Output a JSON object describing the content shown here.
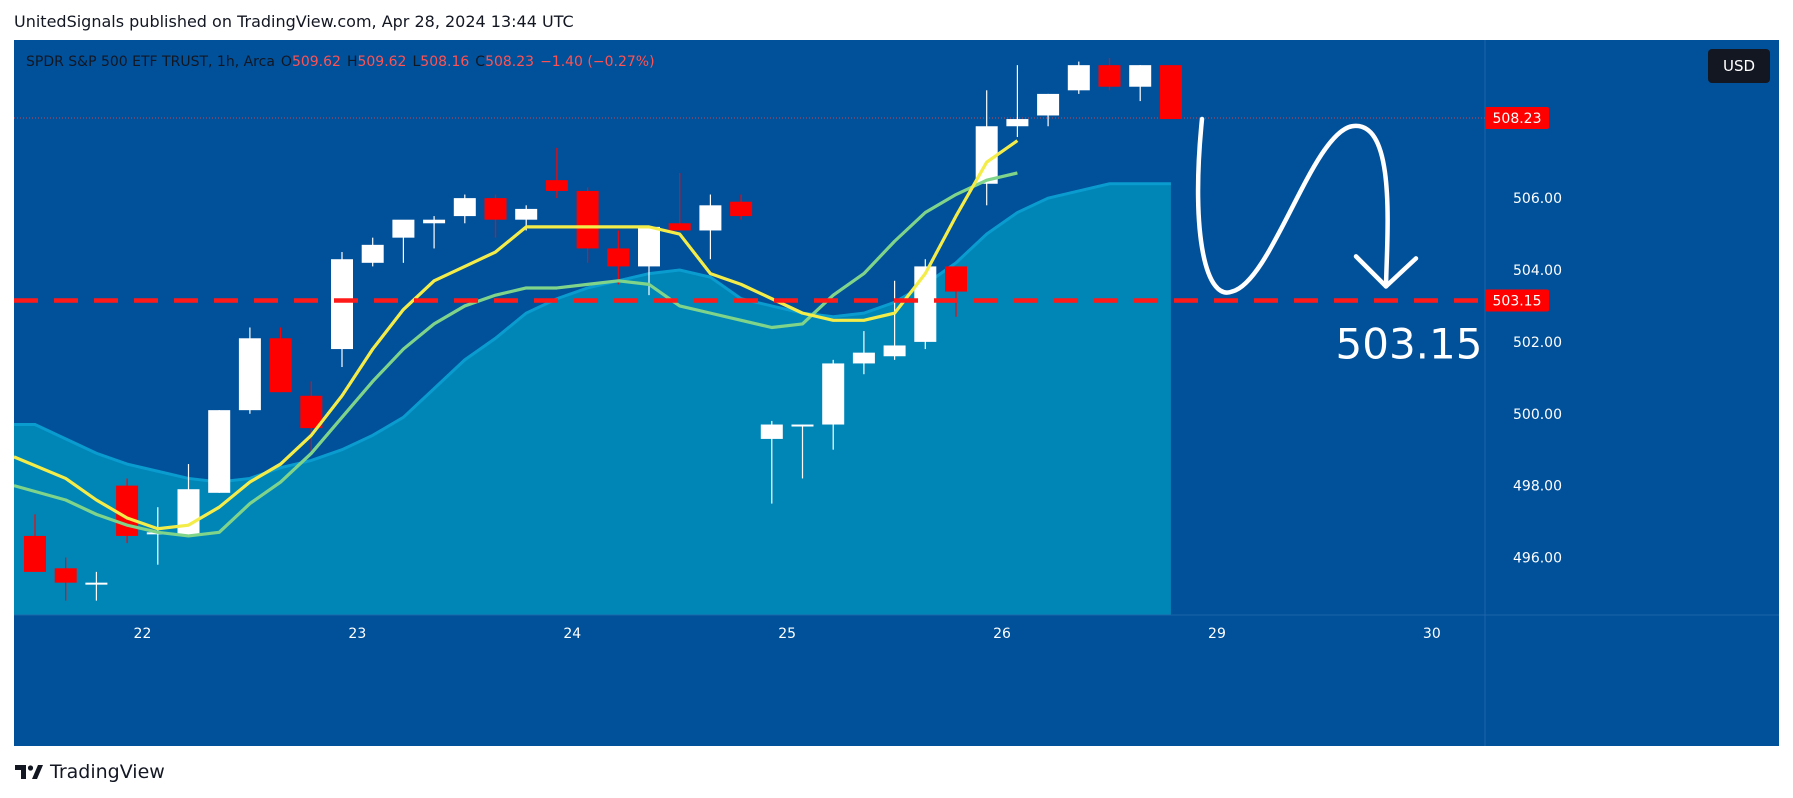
{
  "header": {
    "publisher_line": "UnitedSignals published on TradingView.com, Apr 28, 2024 13:44 UTC"
  },
  "legend": {
    "symbol": "SPDR S&P 500 ETF TRUST, 1h, Arca",
    "o_label": "O",
    "o_value": "509.62",
    "h_label": "H",
    "h_value": "509.62",
    "l_label": "L",
    "l_value": "508.16",
    "c_label": "C",
    "c_value": "508.23",
    "change": "−1.40 (−0.27%)"
  },
  "currency_button": "USD",
  "footer": {
    "brand": "TradingView"
  },
  "colors": {
    "background": "#01509a",
    "area_fill": "#0088b8",
    "bull": "#ffffff",
    "bear": "#ff0000",
    "fast_ma": "#f4ec48",
    "slow_ma": "#7fd48a",
    "target_line": "#ff1a1a",
    "axis_text": "#ffffff"
  },
  "chart_data": {
    "type": "candlestick",
    "title": "SPDR S&P 500 ETF TRUST, 1h, Arca",
    "y_ticks": [
      "496.00",
      "498.00",
      "500.00",
      "502.00",
      "504.00",
      "506.00"
    ],
    "y_range": [
      494.4,
      510.4
    ],
    "x_ticks": [
      {
        "label": "22",
        "index": 3.5
      },
      {
        "label": "23",
        "index": 10.5
      },
      {
        "label": "24",
        "index": 17.5
      },
      {
        "label": "25",
        "index": 24.5
      },
      {
        "label": "26",
        "index": 31.5
      },
      {
        "label": "29",
        "index": 38.5
      },
      {
        "label": "30",
        "index": 45.5
      }
    ],
    "last_price": "508.23",
    "target_price": "503.15",
    "target_annotation": "503.15",
    "candles": [
      {
        "o": 496.6,
        "h": 497.2,
        "l": 495.6,
        "c": 495.6
      },
      {
        "o": 495.7,
        "h": 496.0,
        "l": 494.8,
        "c": 495.3
      },
      {
        "o": 495.3,
        "h": 495.6,
        "l": 494.8,
        "c": 495.3
      },
      {
        "o": 498.0,
        "h": 498.2,
        "l": 496.4,
        "c": 496.6
      },
      {
        "o": 496.7,
        "h": 497.4,
        "l": 495.8,
        "c": 496.7
      },
      {
        "o": 496.6,
        "h": 498.6,
        "l": 496.6,
        "c": 497.9
      },
      {
        "o": 497.8,
        "h": 500.1,
        "l": 497.8,
        "c": 500.1
      },
      {
        "o": 500.1,
        "h": 502.4,
        "l": 500.0,
        "c": 502.1
      },
      {
        "o": 502.1,
        "h": 502.4,
        "l": 500.6,
        "c": 500.6
      },
      {
        "o": 500.5,
        "h": 500.9,
        "l": 498.9,
        "c": 499.6
      },
      {
        "o": 501.8,
        "h": 504.5,
        "l": 501.3,
        "c": 504.3
      },
      {
        "o": 504.2,
        "h": 504.9,
        "l": 504.1,
        "c": 504.7
      },
      {
        "o": 504.9,
        "h": 505.3,
        "l": 504.2,
        "c": 505.4
      },
      {
        "o": 505.3,
        "h": 505.5,
        "l": 504.6,
        "c": 505.4
      },
      {
        "o": 505.5,
        "h": 506.1,
        "l": 505.3,
        "c": 506.0
      },
      {
        "o": 506.0,
        "h": 506.1,
        "l": 504.9,
        "c": 505.4
      },
      {
        "o": 505.4,
        "h": 505.8,
        "l": 505.1,
        "c": 505.7
      },
      {
        "o": 506.5,
        "h": 507.4,
        "l": 506.0,
        "c": 506.2
      },
      {
        "o": 506.2,
        "h": 506.3,
        "l": 504.2,
        "c": 504.6
      },
      {
        "o": 504.6,
        "h": 505.1,
        "l": 503.6,
        "c": 504.1
      },
      {
        "o": 504.1,
        "h": 505.1,
        "l": 503.3,
        "c": 505.2
      },
      {
        "o": 505.3,
        "h": 506.7,
        "l": 505.1,
        "c": 505.1
      },
      {
        "o": 505.1,
        "h": 506.1,
        "l": 504.3,
        "c": 505.8
      },
      {
        "o": 505.9,
        "h": 506.1,
        "l": 505.4,
        "c": 505.5
      },
      {
        "o": 499.3,
        "h": 499.8,
        "l": 497.5,
        "c": 499.7
      },
      {
        "o": 499.7,
        "h": 499.7,
        "l": 498.2,
        "c": 499.7
      },
      {
        "o": 499.7,
        "h": 501.5,
        "l": 499.0,
        "c": 501.4
      },
      {
        "o": 501.4,
        "h": 502.3,
        "l": 501.1,
        "c": 501.7
      },
      {
        "o": 501.6,
        "h": 503.7,
        "l": 501.5,
        "c": 501.9
      },
      {
        "o": 502.0,
        "h": 504.3,
        "l": 501.8,
        "c": 504.1
      },
      {
        "o": 504.1,
        "h": 504.1,
        "l": 502.7,
        "c": 503.4
      },
      {
        "o": 506.4,
        "h": 509.0,
        "l": 505.8,
        "c": 508.0
      },
      {
        "o": 508.0,
        "h": 509.7,
        "l": 507.7,
        "c": 508.2
      },
      {
        "o": 508.3,
        "h": 508.9,
        "l": 508.0,
        "c": 508.9
      },
      {
        "o": 509.0,
        "h": 509.8,
        "l": 508.9,
        "c": 509.7
      },
      {
        "o": 509.7,
        "h": 509.9,
        "l": 509.0,
        "c": 509.1
      },
      {
        "o": 509.1,
        "h": 509.7,
        "l": 508.7,
        "c": 509.7
      },
      {
        "o": 509.7,
        "h": 509.7,
        "l": 508.2,
        "c": 508.2
      }
    ],
    "fast_ma": [
      498.8,
      498.2,
      497.6,
      497.1,
      496.8,
      496.9,
      497.4,
      498.1,
      498.6,
      499.4,
      500.5,
      501.8,
      502.9,
      503.7,
      504.1,
      504.5,
      505.2,
      505.2,
      505.2,
      505.2,
      505.2,
      505.0,
      503.9,
      503.6,
      503.2,
      502.8,
      502.6,
      502.6,
      502.8,
      503.9,
      505.5,
      507.0,
      507.6
    ],
    "slow_ma": [
      498.0,
      497.6,
      497.2,
      496.9,
      496.7,
      496.6,
      496.7,
      497.5,
      498.1,
      498.9,
      499.9,
      500.9,
      501.8,
      502.5,
      503.0,
      503.3,
      503.5,
      503.5,
      503.6,
      503.7,
      503.6,
      503.0,
      502.8,
      502.6,
      502.4,
      502.5,
      503.3,
      503.9,
      504.8,
      505.6,
      506.1,
      506.5,
      506.7
    ],
    "area_values": [
      499.7,
      499.3,
      498.9,
      498.6,
      498.4,
      498.2,
      498.1,
      498.2,
      498.5,
      498.7,
      499.0,
      499.4,
      499.9,
      500.7,
      501.5,
      502.1,
      502.8,
      503.2,
      503.5,
      503.7,
      503.9,
      504.0,
      503.8,
      503.2,
      503.0,
      502.8,
      502.7,
      502.8,
      503.1,
      503.6,
      504.2,
      505.0,
      505.6,
      506.0,
      506.2,
      506.4,
      506.4,
      506.4
    ]
  }
}
